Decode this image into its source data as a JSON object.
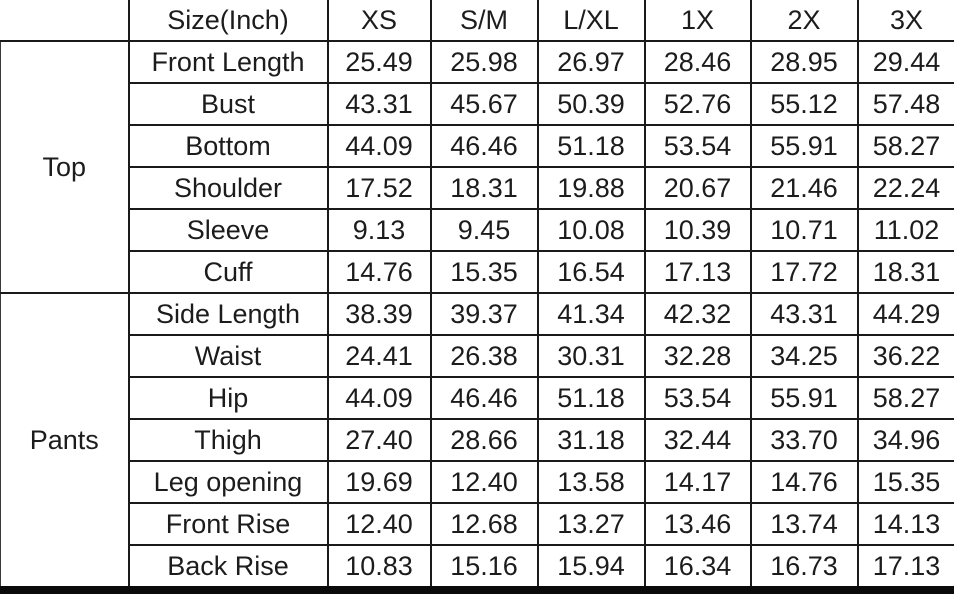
{
  "table": {
    "header": {
      "corner": "",
      "size_label": "Size(Inch)",
      "sizes": [
        "XS",
        "S/M",
        "L/XL",
        "1X",
        "2X",
        "3X"
      ]
    },
    "sections": [
      {
        "group": "Top",
        "rows": [
          {
            "label": "Front Length",
            "values": [
              "25.49",
              "25.98",
              "26.97",
              "28.46",
              "28.95",
              "29.44"
            ]
          },
          {
            "label": "Bust",
            "values": [
              "43.31",
              "45.67",
              "50.39",
              "52.76",
              "55.12",
              "57.48"
            ]
          },
          {
            "label": "Bottom",
            "values": [
              "44.09",
              "46.46",
              "51.18",
              "53.54",
              "55.91",
              "58.27"
            ]
          },
          {
            "label": "Shoulder",
            "values": [
              "17.52",
              "18.31",
              "19.88",
              "20.67",
              "21.46",
              "22.24"
            ]
          },
          {
            "label": "Sleeve",
            "values": [
              "9.13",
              "9.45",
              "10.08",
              "10.39",
              "10.71",
              "11.02"
            ]
          },
          {
            "label": "Cuff",
            "values": [
              "14.76",
              "15.35",
              "16.54",
              "17.13",
              "17.72",
              "18.31"
            ]
          }
        ]
      },
      {
        "group": "Pants",
        "rows": [
          {
            "label": "Side Length",
            "values": [
              "38.39",
              "39.37",
              "41.34",
              "42.32",
              "43.31",
              "44.29"
            ]
          },
          {
            "label": "Waist",
            "values": [
              "24.41",
              "26.38",
              "30.31",
              "32.28",
              "34.25",
              "36.22"
            ]
          },
          {
            "label": "Hip",
            "values": [
              "44.09",
              "46.46",
              "51.18",
              "53.54",
              "55.91",
              "58.27"
            ]
          },
          {
            "label": "Thigh",
            "values": [
              "27.40",
              "28.66",
              "31.18",
              "32.44",
              "33.70",
              "34.96"
            ]
          },
          {
            "label": "Leg opening",
            "values": [
              "19.69",
              "12.40",
              "13.58",
              "14.17",
              "14.76",
              "15.35"
            ]
          },
          {
            "label": "Front Rise",
            "values": [
              "12.40",
              "12.68",
              "13.27",
              "13.46",
              "13.74",
              "14.13"
            ]
          },
          {
            "label": "Back Rise",
            "values": [
              "10.83",
              "15.16",
              "15.94",
              "16.34",
              "16.73",
              "17.13"
            ]
          }
        ]
      }
    ],
    "colors": {
      "grid_border": "#1a1a1a",
      "bottom_bar": "#0a0a0a",
      "text": "#1c1c1c",
      "background": "#ffffff"
    }
  },
  "chart_data": {
    "type": "table",
    "title": "Size(Inch)",
    "columns": [
      "",
      "Size(Inch)",
      "XS",
      "S/M",
      "L/XL",
      "1X",
      "2X",
      "3X"
    ],
    "rows": [
      [
        "Top",
        "Front Length",
        25.49,
        25.98,
        26.97,
        28.46,
        28.95,
        29.44
      ],
      [
        "Top",
        "Bust",
        43.31,
        45.67,
        50.39,
        52.76,
        55.12,
        57.48
      ],
      [
        "Top",
        "Bottom",
        44.09,
        46.46,
        51.18,
        53.54,
        55.91,
        58.27
      ],
      [
        "Top",
        "Shoulder",
        17.52,
        18.31,
        19.88,
        20.67,
        21.46,
        22.24
      ],
      [
        "Top",
        "Sleeve",
        9.13,
        9.45,
        10.08,
        10.39,
        10.71,
        11.02
      ],
      [
        "Top",
        "Cuff",
        14.76,
        15.35,
        16.54,
        17.13,
        17.72,
        18.31
      ],
      [
        "Pants",
        "Side Length",
        38.39,
        39.37,
        41.34,
        42.32,
        43.31,
        44.29
      ],
      [
        "Pants",
        "Waist",
        24.41,
        26.38,
        30.31,
        32.28,
        34.25,
        36.22
      ],
      [
        "Pants",
        "Hip",
        44.09,
        46.46,
        51.18,
        53.54,
        55.91,
        58.27
      ],
      [
        "Pants",
        "Thigh",
        27.4,
        28.66,
        31.18,
        32.44,
        33.7,
        34.96
      ],
      [
        "Pants",
        "Leg opening",
        19.69,
        12.4,
        13.58,
        14.17,
        14.76,
        15.35
      ],
      [
        "Pants",
        "Front Rise",
        12.4,
        12.68,
        13.27,
        13.46,
        13.74,
        14.13
      ],
      [
        "Pants",
        "Back Rise",
        10.83,
        15.16,
        15.94,
        16.34,
        16.73,
        17.13
      ]
    ],
    "layout_hints": {
      "grid": true,
      "header_row": true,
      "row_group_column": true,
      "thick_bottom_border": true
    }
  }
}
